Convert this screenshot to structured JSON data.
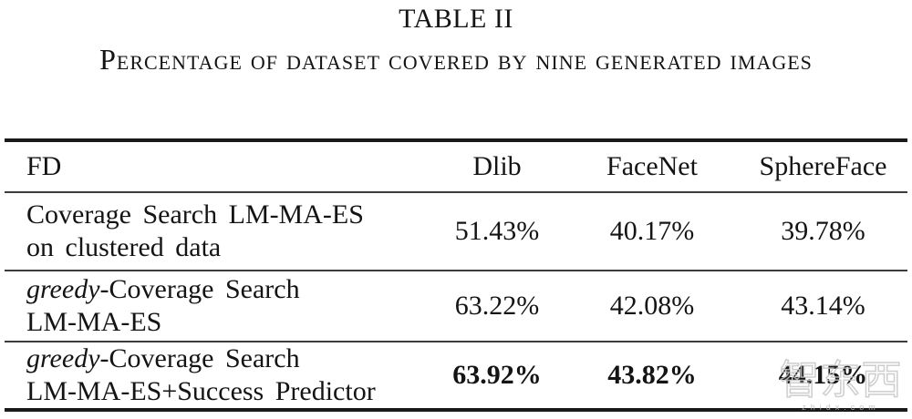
{
  "title": "TABLE II",
  "caption": "Percentage of dataset covered by nine generated images",
  "table": {
    "columns": [
      "FD",
      "Dlib",
      "FaceNet",
      "SphereFace"
    ],
    "rows": [
      {
        "label_italic": "",
        "label_line1": "Coverage Search LM-MA-ES",
        "label_line2": "on clustered data",
        "dlib": "51.43%",
        "facenet": "40.17%",
        "sphereface": "39.78%",
        "bold_values": false
      },
      {
        "label_italic": "greedy",
        "label_line1": "-Coverage Search",
        "label_line2": "LM-MA-ES",
        "dlib": "63.22%",
        "facenet": "42.08%",
        "sphereface": "43.14%",
        "bold_values": false
      },
      {
        "label_italic": "greedy",
        "label_line1": "-Coverage Search",
        "label_line2": "LM-MA-ES+Success Predictor",
        "dlib": "63.92%",
        "facenet": "43.82%",
        "sphereface": "44.15%",
        "bold_values": true
      }
    ]
  },
  "watermark": {
    "logo_text": "智东西",
    "url_text": "zhidx.com",
    "color": "#c6c6c6"
  }
}
